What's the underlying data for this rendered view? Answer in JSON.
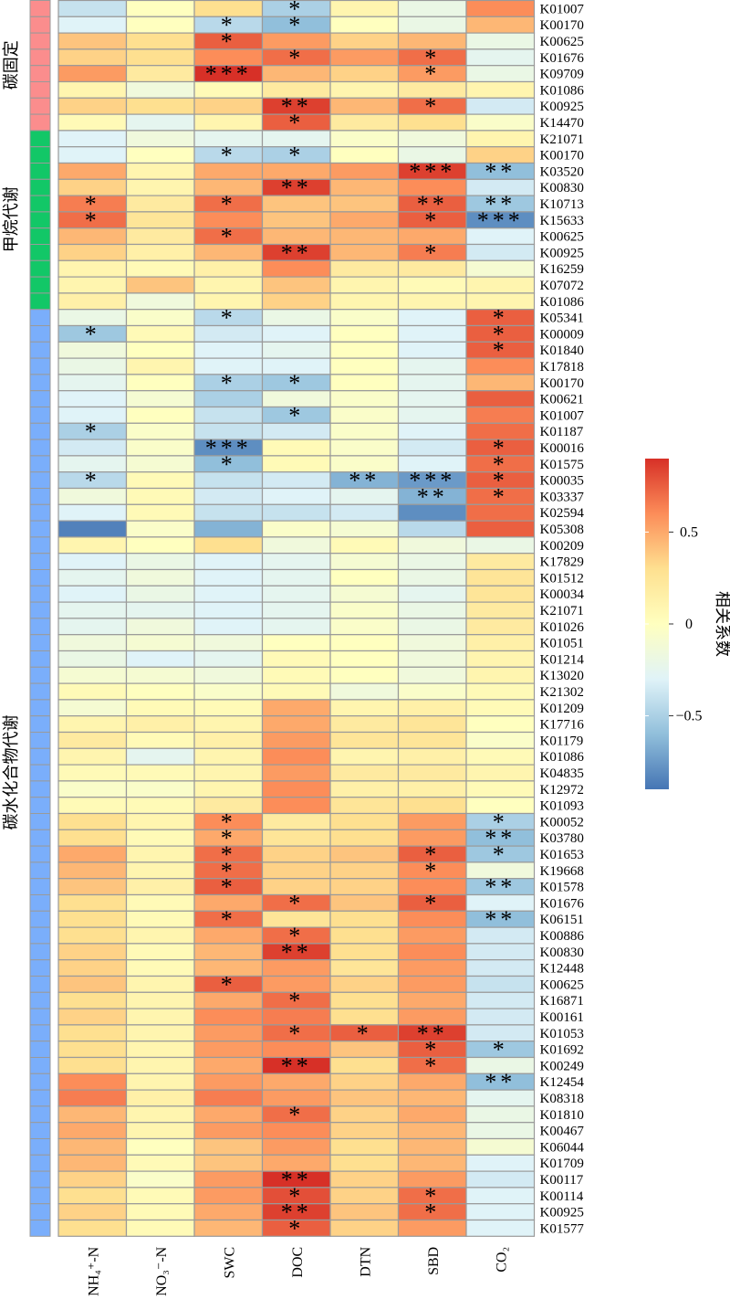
{
  "chart_data": {
    "type": "heatmap",
    "columns": [
      "NH₄⁺-N",
      "NO₃⁻-N",
      "SWC",
      "DOC",
      "DTN",
      "SBD",
      "CO₂"
    ],
    "rows": [
      "K01007",
      "K00170",
      "K00625",
      "K01676",
      "K09709",
      "K01086",
      "K00925",
      "K14470",
      "K21071",
      "K00170",
      "K03520",
      "K00830",
      "K10713",
      "K15633",
      "K00625",
      "K00925",
      "K16259",
      "K07072",
      "K01086",
      "K05341",
      "K00009",
      "K01840",
      "K17818",
      "K00170",
      "K00621",
      "K01007",
      "K01187",
      "K00016",
      "K01575",
      "K00035",
      "K03337",
      "K02594",
      "K05308",
      "K00209",
      "K17829",
      "K01512",
      "K00034",
      "K21071",
      "K01026",
      "K01051",
      "K01214",
      "K13020",
      "K21302",
      "K01209",
      "K17716",
      "K01179",
      "K01086",
      "K04835",
      "K12972",
      "K01093",
      "K00052",
      "K03780",
      "K01653",
      "K19668",
      "K01578",
      "K01676",
      "K06151",
      "K00886",
      "K00830",
      "K12448",
      "K00625",
      "K16871",
      "K00161",
      "K01053",
      "K01692",
      "K00249",
      "K12454",
      "K08318",
      "K01810",
      "K00467",
      "K06044",
      "K01709",
      "K00117",
      "K00114",
      "K00925",
      "K01577"
    ],
    "groups": [
      {
        "name": "碳固定",
        "color": "#fb8d8d",
        "start": 0,
        "count": 8
      },
      {
        "name": "甲烷代谢",
        "color": "#12c767",
        "start": 8,
        "count": 11
      },
      {
        "name": "碳水化合物代谢",
        "color": "#7aaefb",
        "start": 19,
        "count": 57
      }
    ],
    "values": [
      [
        -0.4,
        0.0,
        0.3,
        -0.5,
        0.1,
        -0.2,
        0.6
      ],
      [
        -0.3,
        0.0,
        -0.45,
        -0.6,
        0.0,
        -0.2,
        0.45
      ],
      [
        0.4,
        0.3,
        0.75,
        0.55,
        0.35,
        0.45,
        -0.2
      ],
      [
        0.35,
        0.3,
        0.6,
        0.7,
        0.55,
        0.7,
        -0.25
      ],
      [
        0.55,
        0.2,
        0.95,
        0.45,
        0.35,
        0.55,
        -0.2
      ],
      [
        0.1,
        -0.15,
        0.05,
        0.2,
        0.1,
        0.2,
        0.1
      ],
      [
        0.35,
        0.3,
        0.35,
        0.85,
        0.45,
        0.7,
        -0.35
      ],
      [
        0.05,
        -0.25,
        0.1,
        0.75,
        0.2,
        0.3,
        -0.05
      ],
      [
        -0.3,
        -0.15,
        -0.25,
        -0.25,
        -0.05,
        -0.15,
        0.1
      ],
      [
        -0.3,
        0.0,
        -0.45,
        -0.5,
        0.0,
        -0.2,
        0.35
      ],
      [
        0.5,
        0.1,
        0.5,
        0.5,
        0.55,
        0.85,
        -0.6
      ],
      [
        0.35,
        0.1,
        0.45,
        0.85,
        0.45,
        0.6,
        -0.35
      ],
      [
        0.65,
        0.2,
        0.7,
        0.4,
        0.4,
        0.75,
        -0.55
      ],
      [
        0.7,
        0.25,
        0.6,
        0.4,
        0.5,
        0.75,
        -0.8
      ],
      [
        0.45,
        0.2,
        0.7,
        0.45,
        0.45,
        0.5,
        -0.3
      ],
      [
        0.35,
        0.15,
        0.45,
        0.85,
        0.45,
        0.65,
        -0.35
      ],
      [
        0.1,
        0.05,
        0.15,
        0.6,
        0.2,
        0.2,
        -0.1
      ],
      [
        0.1,
        0.4,
        0.1,
        0.4,
        0.1,
        0.05,
        0.1
      ],
      [
        0.15,
        -0.15,
        0.1,
        0.35,
        0.1,
        0.1,
        0.1
      ],
      [
        -0.2,
        -0.05,
        -0.45,
        -0.2,
        -0.05,
        -0.3,
        0.75
      ],
      [
        -0.55,
        0.05,
        -0.35,
        -0.3,
        0.0,
        -0.3,
        0.75
      ],
      [
        -0.15,
        0.0,
        -0.3,
        -0.25,
        0.0,
        -0.3,
        0.75
      ],
      [
        -0.2,
        0.1,
        -0.3,
        -0.3,
        0.0,
        -0.25,
        0.6
      ],
      [
        -0.25,
        0.0,
        -0.5,
        -0.55,
        0.0,
        -0.25,
        0.45
      ],
      [
        -0.3,
        -0.1,
        -0.5,
        -0.15,
        -0.05,
        -0.25,
        0.75
      ],
      [
        -0.3,
        0.0,
        -0.4,
        -0.55,
        -0.05,
        -0.25,
        0.65
      ],
      [
        -0.5,
        -0.05,
        -0.4,
        -0.35,
        -0.05,
        -0.3,
        0.7
      ],
      [
        -0.35,
        -0.05,
        -0.8,
        0.05,
        -0.05,
        -0.35,
        0.75
      ],
      [
        -0.25,
        -0.1,
        -0.6,
        0.05,
        -0.05,
        -0.3,
        0.7
      ],
      [
        -0.45,
        0.05,
        -0.4,
        -0.35,
        -0.65,
        -0.75,
        0.75
      ],
      [
        -0.15,
        0.05,
        -0.35,
        -0.3,
        -0.25,
        -0.65,
        0.7
      ],
      [
        -0.3,
        0.05,
        -0.4,
        -0.4,
        -0.35,
        -0.8,
        0.7
      ],
      [
        -0.85,
        -0.05,
        -0.65,
        -0.05,
        -0.1,
        -0.45,
        0.75
      ],
      [
        0.1,
        0.0,
        0.3,
        -0.15,
        0.05,
        -0.15,
        -0.2
      ],
      [
        -0.3,
        -0.2,
        -0.3,
        -0.25,
        -0.1,
        -0.2,
        0.2
      ],
      [
        -0.25,
        -0.15,
        -0.3,
        -0.25,
        0.0,
        -0.2,
        0.25
      ],
      [
        -0.3,
        -0.2,
        -0.3,
        -0.25,
        -0.1,
        -0.25,
        0.25
      ],
      [
        -0.25,
        -0.25,
        -0.3,
        -0.25,
        -0.05,
        -0.2,
        0.2
      ],
      [
        -0.25,
        -0.15,
        -0.3,
        -0.25,
        -0.05,
        -0.2,
        0.2
      ],
      [
        -0.15,
        -0.1,
        -0.15,
        0.0,
        0.0,
        -0.15,
        0.15
      ],
      [
        -0.2,
        -0.3,
        -0.25,
        0.05,
        0.0,
        -0.15,
        0.1
      ],
      [
        -0.1,
        -0.1,
        -0.15,
        0.05,
        0.0,
        -0.15,
        0.1
      ],
      [
        0.05,
        0.0,
        -0.05,
        0.05,
        -0.15,
        -0.05,
        0.05
      ],
      [
        -0.1,
        0.05,
        0.05,
        0.5,
        0.1,
        0.15,
        0.05
      ],
      [
        0.1,
        0.15,
        0.1,
        0.5,
        0.2,
        0.25,
        0.0
      ],
      [
        0.2,
        0.05,
        0.15,
        0.55,
        0.25,
        0.25,
        -0.05
      ],
      [
        0.1,
        -0.25,
        0.1,
        0.6,
        0.1,
        0.15,
        0.05
      ],
      [
        0.05,
        0.05,
        0.1,
        0.55,
        0.2,
        0.2,
        0.1
      ],
      [
        -0.05,
        -0.05,
        0.1,
        0.6,
        0.15,
        0.15,
        0.05
      ],
      [
        0.05,
        0.05,
        0.2,
        0.6,
        0.25,
        0.3,
        0.0
      ],
      [
        0.3,
        0.1,
        0.6,
        0.2,
        0.3,
        0.55,
        -0.5
      ],
      [
        0.3,
        0.05,
        0.5,
        0.25,
        0.3,
        0.55,
        -0.6
      ],
      [
        0.5,
        0.1,
        0.7,
        0.35,
        0.4,
        0.75,
        -0.55
      ],
      [
        0.45,
        0.1,
        0.7,
        0.35,
        0.35,
        0.6,
        -0.15
      ],
      [
        0.4,
        0.15,
        0.75,
        0.35,
        0.35,
        0.6,
        -0.55
      ],
      [
        0.3,
        0.05,
        0.5,
        0.7,
        0.4,
        0.75,
        -0.3
      ],
      [
        0.3,
        0.05,
        0.7,
        0.25,
        0.3,
        0.6,
        -0.6
      ],
      [
        0.3,
        0.1,
        0.5,
        0.7,
        0.3,
        0.55,
        -0.35
      ],
      [
        0.35,
        0.05,
        0.45,
        0.85,
        0.3,
        0.6,
        -0.35
      ],
      [
        0.35,
        0.05,
        0.45,
        0.55,
        0.25,
        0.55,
        -0.35
      ],
      [
        0.4,
        0.1,
        0.75,
        0.55,
        0.35,
        0.55,
        -0.4
      ],
      [
        0.3,
        0.1,
        0.5,
        0.7,
        0.3,
        0.5,
        -0.35
      ],
      [
        0.35,
        0.1,
        0.6,
        0.65,
        0.3,
        0.55,
        -0.35
      ],
      [
        0.3,
        0.1,
        0.55,
        0.7,
        0.75,
        0.85,
        -0.35
      ],
      [
        0.3,
        0.1,
        0.55,
        0.6,
        0.4,
        0.75,
        -0.55
      ],
      [
        0.3,
        0.1,
        0.5,
        0.9,
        0.3,
        0.7,
        -0.2
      ],
      [
        0.6,
        0.1,
        0.55,
        0.5,
        0.35,
        0.5,
        -0.6
      ],
      [
        0.65,
        0.15,
        0.65,
        0.55,
        0.4,
        0.45,
        -0.25
      ],
      [
        0.45,
        0.1,
        0.5,
        0.7,
        0.35,
        0.5,
        -0.2
      ],
      [
        0.5,
        0.1,
        0.55,
        0.6,
        0.35,
        0.45,
        -0.2
      ],
      [
        0.45,
        0.0,
        0.4,
        0.55,
        0.3,
        0.45,
        -0.1
      ],
      [
        0.45,
        0.05,
        0.4,
        0.5,
        0.3,
        0.45,
        -0.3
      ],
      [
        0.35,
        -0.05,
        0.55,
        0.9,
        0.35,
        0.55,
        -0.35
      ],
      [
        0.3,
        0.05,
        0.55,
        0.8,
        0.35,
        0.7,
        -0.3
      ],
      [
        0.35,
        0.05,
        0.5,
        0.85,
        0.4,
        0.7,
        -0.3
      ],
      [
        0.3,
        0.05,
        0.45,
        0.75,
        0.35,
        0.55,
        -0.3
      ]
    ],
    "significance": [
      [
        "",
        "",
        "",
        "*",
        "",
        "",
        ""
      ],
      [
        "",
        "",
        "*",
        "*",
        "",
        "",
        ""
      ],
      [
        "",
        "",
        "*",
        "",
        "",
        "",
        ""
      ],
      [
        "",
        "",
        "",
        "*",
        "",
        "*",
        ""
      ],
      [
        "",
        "",
        "***",
        "",
        "",
        "*",
        ""
      ],
      [
        "",
        "",
        "",
        "",
        "",
        "",
        ""
      ],
      [
        "",
        "",
        "",
        "**",
        "",
        "*",
        ""
      ],
      [
        "",
        "",
        "",
        "*",
        "",
        "",
        ""
      ],
      [
        "",
        "",
        "",
        "",
        "",
        "",
        ""
      ],
      [
        "",
        "",
        "*",
        "*",
        "",
        "",
        ""
      ],
      [
        "",
        "",
        "",
        "",
        "",
        "***",
        "**"
      ],
      [
        "",
        "",
        "",
        "**",
        "",
        "",
        ""
      ],
      [
        "*",
        "",
        "*",
        "",
        "",
        "**",
        "**"
      ],
      [
        "*",
        "",
        "",
        "",
        "",
        "*",
        "***"
      ],
      [
        "",
        "",
        "*",
        "",
        "",
        "",
        ""
      ],
      [
        "",
        "",
        "",
        "**",
        "",
        "*",
        ""
      ],
      [
        "",
        "",
        "",
        "",
        "",
        "",
        ""
      ],
      [
        "",
        "",
        "",
        "",
        "",
        "",
        ""
      ],
      [
        "",
        "",
        "",
        "",
        "",
        "",
        ""
      ],
      [
        "",
        "",
        "*",
        "",
        "",
        "",
        "*"
      ],
      [
        "*",
        "",
        "",
        "",
        "",
        "",
        "*"
      ],
      [
        "",
        "",
        "",
        "",
        "",
        "",
        "*"
      ],
      [
        "",
        "",
        "",
        "",
        "",
        "",
        ""
      ],
      [
        "",
        "",
        "*",
        "*",
        "",
        "",
        ""
      ],
      [
        "",
        "",
        "",
        "",
        "",
        "",
        ""
      ],
      [
        "",
        "",
        "",
        "*",
        "",
        "",
        ""
      ],
      [
        "*",
        "",
        "",
        "",
        "",
        "",
        ""
      ],
      [
        "",
        "",
        "***",
        "",
        "",
        "",
        "*"
      ],
      [
        "",
        "",
        "*",
        "",
        "",
        "",
        "*"
      ],
      [
        "*",
        "",
        "",
        "",
        "**",
        "***",
        "*"
      ],
      [
        "",
        "",
        "",
        "",
        "",
        "**",
        "*"
      ],
      [
        "",
        "",
        "",
        "",
        "",
        "",
        ""
      ],
      [
        "",
        "",
        "",
        "",
        "",
        "",
        ""
      ],
      [
        "",
        "",
        "",
        "",
        "",
        "",
        ""
      ],
      [
        "",
        "",
        "",
        "",
        "",
        "",
        ""
      ],
      [
        "",
        "",
        "",
        "",
        "",
        "",
        ""
      ],
      [
        "",
        "",
        "",
        "",
        "",
        "",
        ""
      ],
      [
        "",
        "",
        "",
        "",
        "",
        "",
        ""
      ],
      [
        "",
        "",
        "",
        "",
        "",
        "",
        ""
      ],
      [
        "",
        "",
        "",
        "",
        "",
        "",
        ""
      ],
      [
        "",
        "",
        "",
        "",
        "",
        "",
        ""
      ],
      [
        "",
        "",
        "",
        "",
        "",
        "",
        ""
      ],
      [
        "",
        "",
        "",
        "",
        "",
        "",
        ""
      ],
      [
        "",
        "",
        "",
        "",
        "",
        "",
        ""
      ],
      [
        "",
        "",
        "",
        "",
        "",
        "",
        ""
      ],
      [
        "",
        "",
        "",
        "",
        "",
        "",
        ""
      ],
      [
        "",
        "",
        "",
        "",
        "",
        "",
        ""
      ],
      [
        "",
        "",
        "",
        "",
        "",
        "",
        ""
      ],
      [
        "",
        "",
        "",
        "",
        "",
        "",
        ""
      ],
      [
        "",
        "",
        "",
        "",
        "",
        "",
        ""
      ],
      [
        "",
        "",
        "*",
        "",
        "",
        "",
        "*"
      ],
      [
        "",
        "",
        "*",
        "",
        "",
        "",
        "**"
      ],
      [
        "",
        "",
        "*",
        "",
        "",
        "*",
        "*"
      ],
      [
        "",
        "",
        "*",
        "",
        "",
        "*",
        ""
      ],
      [
        "",
        "",
        "*",
        "",
        "",
        "",
        "**"
      ],
      [
        "",
        "",
        "",
        "*",
        "",
        "*",
        ""
      ],
      [
        "",
        "",
        "*",
        "",
        "",
        "",
        "**"
      ],
      [
        "",
        "",
        "",
        "*",
        "",
        "",
        ""
      ],
      [
        "",
        "",
        "",
        "**",
        "",
        "",
        ""
      ],
      [
        "",
        "",
        "",
        "",
        "",
        "",
        ""
      ],
      [
        "",
        "",
        "*",
        "",
        "",
        "",
        ""
      ],
      [
        "",
        "",
        "",
        "*",
        "",
        "",
        ""
      ],
      [
        "",
        "",
        "",
        "",
        "",
        "",
        ""
      ],
      [
        "",
        "",
        "",
        "*",
        "*",
        "**",
        ""
      ],
      [
        "",
        "",
        "",
        "",
        "",
        "*",
        "*"
      ],
      [
        "",
        "",
        "",
        "**",
        "",
        "*",
        ""
      ],
      [
        "",
        "",
        "",
        "",
        "",
        "",
        "**"
      ],
      [
        "",
        "",
        "",
        "",
        "",
        "",
        ""
      ],
      [
        "",
        "",
        "",
        "*",
        "",
        "",
        ""
      ],
      [
        "",
        "",
        "",
        "",
        "",
        "",
        ""
      ],
      [
        "",
        "",
        "",
        "",
        "",
        "",
        ""
      ],
      [
        "",
        "",
        "",
        "",
        "",
        "",
        ""
      ],
      [
        "",
        "",
        "",
        "**",
        "",
        "",
        ""
      ],
      [
        "",
        "",
        "",
        "*",
        "",
        "*",
        ""
      ],
      [
        "",
        "",
        "",
        "**",
        "",
        "*",
        ""
      ],
      [
        "",
        "",
        "",
        "*",
        "",
        "",
        ""
      ]
    ],
    "colorbar": {
      "label": "相关系数",
      "ticks": [
        "0.5",
        "0",
        "−0.5"
      ],
      "tick_values": [
        0.5,
        0,
        -0.5
      ],
      "range": [
        -0.9,
        0.9
      ],
      "colors": [
        "#4575b4",
        "#91bfdb",
        "#e0f3f8",
        "#ffffbf",
        "#fee090",
        "#fc8d59",
        "#d73027"
      ]
    }
  }
}
